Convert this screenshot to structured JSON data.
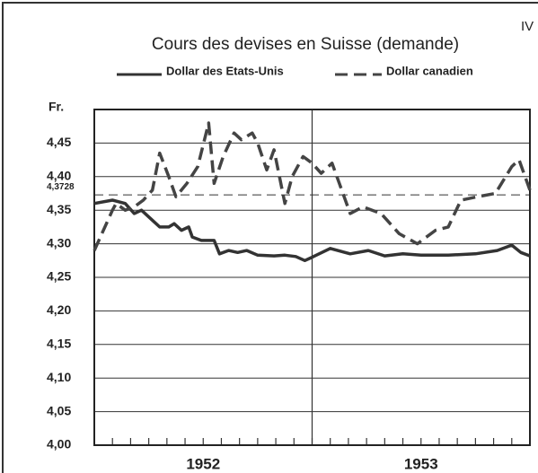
{
  "chart_data": {
    "type": "line",
    "corner_label": "IV",
    "title": "Cours des devises en Suisse (demande)",
    "y_label": "Fr.",
    "x_labels": [
      "1952",
      "1953"
    ],
    "xlim": [
      0,
      24
    ],
    "xticks": [
      0,
      1,
      2,
      3,
      4,
      5,
      6,
      7,
      8,
      9,
      10,
      11,
      12,
      13,
      14,
      15,
      16,
      17,
      18,
      19,
      20,
      21,
      22,
      23,
      24
    ],
    "ylim": [
      4.0,
      4.5
    ],
    "yticks": [
      {
        "value": 4.0,
        "label": "4,00"
      },
      {
        "value": 4.05,
        "label": "4,05"
      },
      {
        "value": 4.1,
        "label": "4,10"
      },
      {
        "value": 4.15,
        "label": "4,15"
      },
      {
        "value": 4.2,
        "label": "4,20"
      },
      {
        "value": 4.25,
        "label": "4,25"
      },
      {
        "value": 4.3,
        "label": "4,30"
      },
      {
        "value": 4.35,
        "label": "4,35"
      },
      {
        "value": 4.4,
        "label": "4,40"
      },
      {
        "value": 4.45,
        "label": "4,45"
      }
    ],
    "reference": {
      "value": 4.3728,
      "label": "4,3728"
    },
    "grid": true,
    "series": [
      {
        "name": "Dollar des Etats-Unis",
        "color": "#333333",
        "dash": "solid",
        "x": [
          0,
          1.0,
          1.7,
          2.2,
          2.6,
          3.2,
          3.6,
          4.1,
          4.4,
          4.8,
          5.2,
          5.4,
          5.9,
          6.6,
          6.9,
          7.4,
          7.9,
          8.4,
          9.0,
          9.9,
          10.5,
          11.1,
          11.6,
          12.0,
          13.0,
          14.1,
          15.1,
          16.0,
          17.0,
          18.0,
          19.5,
          21.0,
          22.2,
          23.0,
          23.5,
          24.0
        ],
        "values": [
          4.36,
          4.365,
          4.36,
          4.345,
          4.35,
          4.335,
          4.325,
          4.325,
          4.33,
          4.32,
          4.325,
          4.31,
          4.305,
          4.305,
          4.285,
          4.29,
          4.287,
          4.29,
          4.283,
          4.282,
          4.283,
          4.281,
          4.275,
          4.28,
          4.293,
          4.285,
          4.29,
          4.282,
          4.285,
          4.283,
          4.283,
          4.285,
          4.29,
          4.298,
          4.287,
          4.282
        ]
      },
      {
        "name": "Dollar canadien",
        "color": "#444444",
        "dash": "dashed",
        "x": [
          0,
          1.0,
          1.2,
          1.7,
          2.2,
          2.7,
          3.2,
          3.6,
          4.1,
          4.5,
          5.1,
          5.7,
          6.3,
          6.6,
          7.1,
          7.7,
          8.1,
          8.7,
          9.0,
          9.5,
          9.9,
          10.5,
          10.9,
          11.5,
          12.0,
          12.5,
          13.1,
          14.1,
          14.8,
          15.8,
          16.8,
          17.8,
          18.8,
          19.5,
          20.2,
          21.1,
          22.1,
          23.0,
          23.4,
          24.0
        ],
        "values": [
          4.29,
          4.35,
          4.36,
          4.35,
          4.355,
          4.365,
          4.38,
          4.435,
          4.4,
          4.37,
          4.39,
          4.415,
          4.48,
          4.39,
          4.43,
          4.465,
          4.455,
          4.465,
          4.45,
          4.41,
          4.44,
          4.36,
          4.4,
          4.43,
          4.42,
          4.405,
          4.42,
          4.345,
          4.355,
          4.345,
          4.315,
          4.3,
          4.32,
          4.325,
          4.365,
          4.37,
          4.375,
          4.415,
          4.425,
          4.38
        ]
      }
    ]
  }
}
